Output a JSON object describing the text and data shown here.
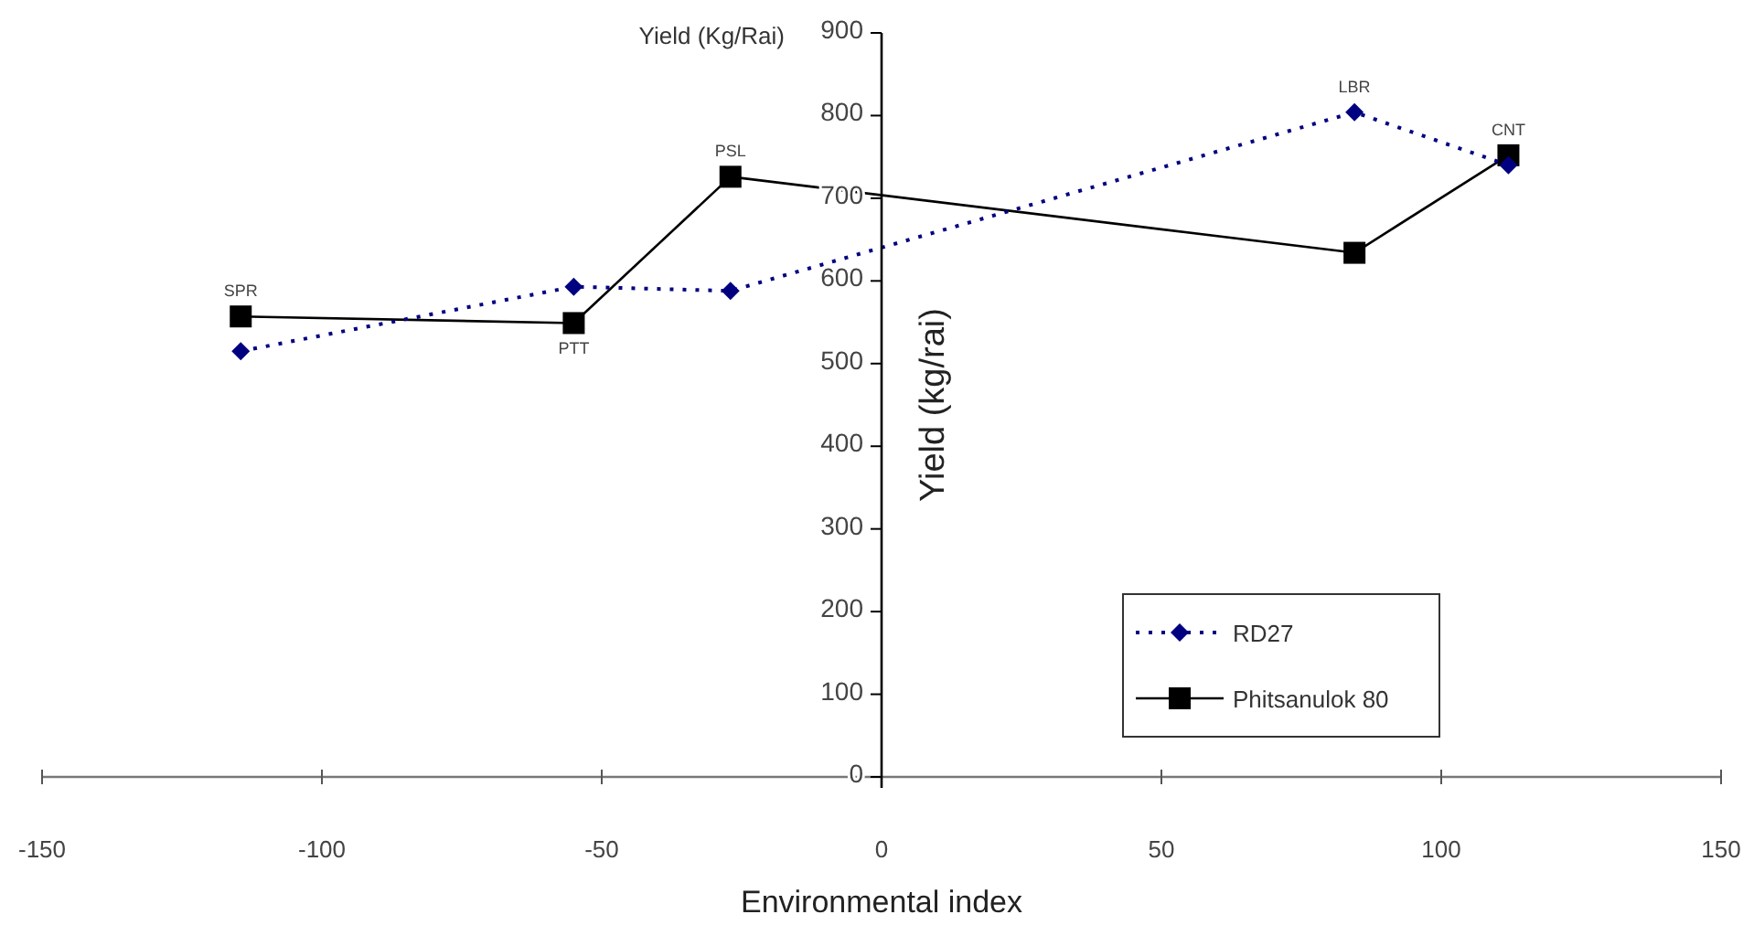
{
  "chart_data": {
    "type": "line",
    "xlabel": "Environmental index",
    "ylabel": "Yield (kg/rai)",
    "xlim": [
      -150,
      150
    ],
    "xticks": [
      -150,
      -100,
      -50,
      0,
      50,
      100,
      150
    ],
    "ylim": [
      0,
      900
    ],
    "yticks": [
      0,
      100,
      200,
      300,
      400,
      500,
      600,
      700,
      800,
      900
    ],
    "x": [
      -114.5,
      -55,
      -27,
      84.5,
      112
    ],
    "series": [
      {
        "name": "RD27",
        "color": "#000080",
        "values": [
          515,
          593,
          588,
          804,
          740
        ],
        "marker": "diamond",
        "line_style": "dotted"
      },
      {
        "name": "Phitsanulok 80",
        "color": "#000000",
        "values": [
          557,
          549,
          726,
          634,
          752
        ],
        "marker": "square",
        "line_style": "solid"
      }
    ],
    "annotations": [
      "Yield (Kg/Rai)",
      {
        "text": "SPR",
        "x": -114.5,
        "y": 557
      },
      {
        "text": "PTT",
        "x": -55,
        "y": 549
      },
      {
        "text": "PSL",
        "x": -27,
        "y": 726
      },
      {
        "text": "LBR",
        "x": 84.5,
        "y": 804
      },
      {
        "text": "CNT",
        "x": 112,
        "y": 752
      }
    ],
    "legend": "bottom right",
    "grid": false
  }
}
